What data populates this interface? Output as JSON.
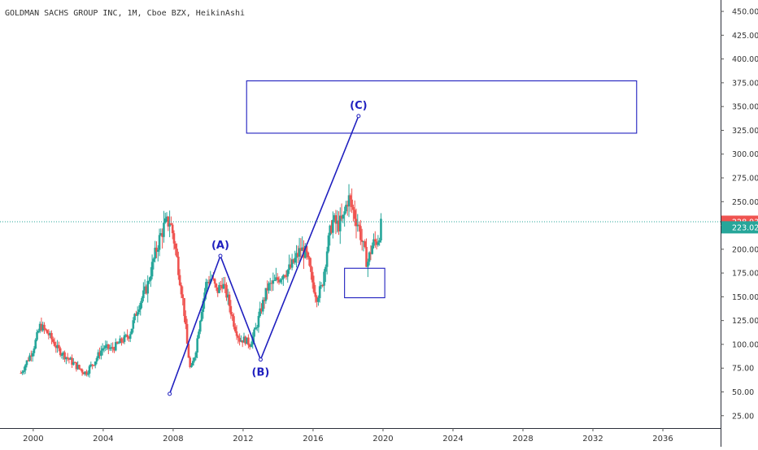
{
  "symbol": {
    "title": "GOLDMAN SACHS GROUP INC, 1M, Cboe BZX, HeikinAshi"
  },
  "price_axis": {
    "ticks": [
      "450.00",
      "425.00",
      "400.00",
      "375.00",
      "350.00",
      "325.00",
      "300.00",
      "275.00",
      "250.00",
      "225.00",
      "200.00",
      "175.00",
      "150.00",
      "125.00",
      "100.00",
      "75.00",
      "50.00",
      "25.00"
    ],
    "tick_values": [
      450,
      425,
      400,
      375,
      350,
      325,
      300,
      275,
      250,
      225,
      200,
      175,
      150,
      125,
      100,
      75,
      50,
      25
    ],
    "last_price_label": "228.93",
    "last_price": 228.93,
    "ha_close_label": "223.02",
    "ha_close": 223.02,
    "last_price_color": "#ef5350",
    "ha_close_color": "#26a69a"
  },
  "time_axis": {
    "ticks": [
      "2000",
      "2004",
      "2008",
      "2012",
      "2016",
      "2020",
      "2024",
      "2028",
      "2032",
      "2036"
    ],
    "tick_years": [
      2000,
      2004,
      2008,
      2012,
      2016,
      2020,
      2024,
      2028,
      2032,
      2036
    ]
  },
  "colors": {
    "up": "#26a69a",
    "down": "#ef5350",
    "drawing": "#1f1fbf",
    "text": "#333333",
    "grid_line": "#26a69a"
  },
  "chart_data": {
    "type": "candlestick",
    "style": "Heikin Ashi",
    "interval": "1M",
    "y_range": [
      12,
      462
    ],
    "x_range": [
      1998.1,
      2039.3
    ],
    "series": [
      {
        "segment": 1,
        "points": [
          [
            1999.3,
            70
          ],
          [
            2000.0,
            95
          ],
          [
            2000.4,
            120
          ],
          [
            2000.9,
            110
          ],
          [
            2001.4,
            95
          ],
          [
            2002.0,
            85
          ],
          [
            2002.6,
            75
          ],
          [
            2003.0,
            70
          ],
          [
            2003.5,
            82
          ],
          [
            2004.0,
            97
          ],
          [
            2004.5,
            95
          ],
          [
            2005.0,
            103
          ],
          [
            2005.5,
            110
          ],
          [
            2006.0,
            140
          ],
          [
            2006.5,
            160
          ],
          [
            2006.9,
            190
          ],
          [
            2007.2,
            210
          ],
          [
            2007.5,
            225
          ],
          [
            2007.8,
            230
          ],
          [
            2008.0,
            215
          ],
          [
            2008.3,
            180
          ],
          [
            2008.6,
            140
          ]
        ]
      },
      {
        "segment": 2,
        "points": [
          [
            2008.6,
            140
          ],
          [
            2008.8,
            100
          ],
          [
            2009.0,
            70
          ],
          [
            2009.3,
            95
          ],
          [
            2009.6,
            135
          ],
          [
            2009.9,
            165
          ],
          [
            2010.2,
            170
          ],
          [
            2010.5,
            155
          ],
          [
            2010.8,
            165
          ],
          [
            2011.1,
            150
          ],
          [
            2011.5,
            120
          ],
          [
            2011.8,
            105
          ],
          [
            2012.1,
            105
          ],
          [
            2012.4,
            100
          ],
          [
            2012.7,
            115
          ],
          [
            2013.0,
            135
          ],
          [
            2013.4,
            160
          ],
          [
            2013.8,
            165
          ],
          [
            2014.3,
            175
          ],
          [
            2014.7,
            180
          ],
          [
            2015.0,
            190
          ],
          [
            2015.3,
            200
          ],
          [
            2015.6,
            195
          ],
          [
            2015.9,
            170
          ]
        ]
      },
      {
        "segment": 3,
        "points": [
          [
            2015.9,
            170
          ],
          [
            2016.2,
            150
          ],
          [
            2016.5,
            160
          ],
          [
            2016.8,
            200
          ],
          [
            2017.1,
            230
          ],
          [
            2017.4,
            225
          ],
          [
            2017.7,
            230
          ],
          [
            2018.0,
            255
          ],
          [
            2018.3,
            240
          ],
          [
            2018.6,
            225
          ],
          [
            2018.9,
            200
          ],
          [
            2019.1,
            185
          ],
          [
            2019.4,
            205
          ],
          [
            2019.7,
            210
          ],
          [
            2019.9,
            225
          ]
        ]
      }
    ],
    "annotations": [
      {
        "label": "(A)",
        "x": 2010.7,
        "y": 193
      },
      {
        "label": "(B)",
        "x": 2013.0,
        "y": 84
      },
      {
        "label": "(C)",
        "x": 2018.6,
        "y": 340
      }
    ],
    "wave_path": [
      [
        2007.8,
        48
      ],
      [
        2010.7,
        193
      ],
      [
        2013.0,
        84
      ],
      [
        2018.6,
        340
      ]
    ],
    "target_box": {
      "x0": 2012.2,
      "x1": 2034.5,
      "y0": 322,
      "y1": 377
    },
    "support_box": {
      "x0": 2017.8,
      "x1": 2020.1,
      "y0": 149,
      "y1": 180
    },
    "grid": false
  }
}
